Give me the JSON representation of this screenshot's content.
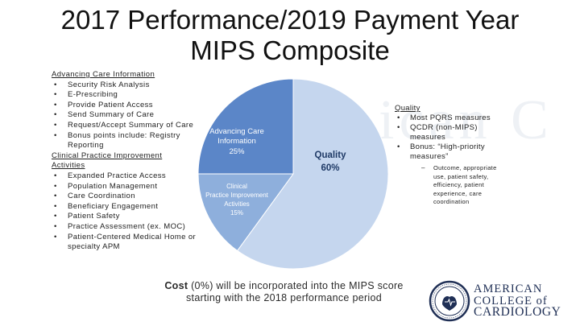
{
  "title": {
    "line1": "2017 Performance/2019 Payment Year",
    "line2": "MIPS Composite"
  },
  "left": {
    "aci_heading": "Advancing Care Information",
    "aci_items": [
      "Security Risk Analysis",
      "E-Prescribing",
      "Provide Patient Access",
      "Send Summary of Care",
      "Request/Accept Summary of Care",
      "Bonus points include: Registry Reporting"
    ],
    "cpia_heading": "Clinical Practice Improvement Activities",
    "cpia_items": [
      "Expanded Practice Access",
      "Population Management",
      "Care Coordination",
      "Beneficiary Engagement",
      "Patient Safety",
      "Practice Assessment (ex. MOC)",
      "Patient-Centered Medical Home or specialty APM"
    ]
  },
  "right": {
    "heading": "Quality",
    "items": [
      "Most PQRS measures",
      "QCDR (non-MIPS) measures",
      "Bonus: “High-priority measures”"
    ],
    "sub_item": "Outcome, appropriate use, patient safety, efficiency, patient experience, care coordination"
  },
  "chart_data": {
    "type": "pie",
    "slices": [
      {
        "label": "Quality",
        "value": 60,
        "display": "60%",
        "color": "#c5d6ee"
      },
      {
        "label": "Clinical Practice Improvement Activities",
        "value": 15,
        "display": "15%",
        "color": "#8eafdc"
      },
      {
        "label": "Advancing Care Information",
        "value": 25,
        "display": "25%",
        "color": "#5b86c8"
      }
    ]
  },
  "pie_labels": {
    "quality_name": "Quality",
    "quality_value": "60%",
    "aci_line1": "Advancing Care",
    "aci_line2": "Information",
    "aci_value": "25%",
    "cpia_line1": "Clinical",
    "cpia_line2": "Practice Improvement",
    "cpia_line3": "Activities",
    "cpia_value": "15%"
  },
  "footer": {
    "bold": "Cost",
    "rest_line1": " (0%) will be incorporated into the MIPS score",
    "line2": "starting with the 2018 performance period"
  },
  "logo": {
    "line1": "AMERICAN",
    "line2": "COLLEGE of",
    "line3": "CARDIOLOGY"
  },
  "colors": {
    "quality": "#c5d6ee",
    "cpia": "#8eafdc",
    "aci": "#5b86c8",
    "logo_navy": "#1f2f55"
  }
}
